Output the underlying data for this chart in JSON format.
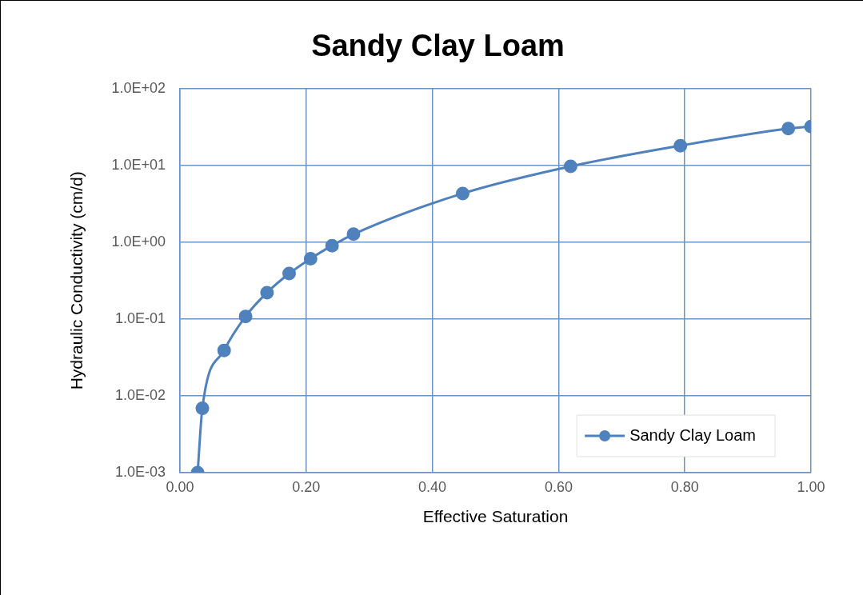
{
  "chart_data": {
    "type": "line",
    "title": "Sandy Clay Loam",
    "xlabel": "Effective Saturation",
    "ylabel": "Hydraulic Conductivity (cm/d)",
    "xlim": [
      0,
      1
    ],
    "xticks": [
      {
        "value": 0,
        "label": "0.00"
      },
      {
        "value": 0.2,
        "label": "0.20"
      },
      {
        "value": 0.4,
        "label": "0.40"
      },
      {
        "value": 0.6,
        "label": "0.60"
      },
      {
        "value": 0.8,
        "label": "0.80"
      },
      {
        "value": 1,
        "label": "1.00"
      }
    ],
    "ylim": [
      0.001,
      100
    ],
    "yticks": [
      {
        "value": 0.001,
        "label": "1.0E-03"
      },
      {
        "value": 0.01,
        "label": "1.0E-02"
      },
      {
        "value": 0.1,
        "label": "1.0E-01"
      },
      {
        "value": 1,
        "label": "1.0E+00"
      },
      {
        "value": 10,
        "label": "1.0E+01"
      },
      {
        "value": 100,
        "label": "1.0E+02"
      }
    ],
    "log": "y",
    "grid": true,
    "legend": "bottom right",
    "series": [
      {
        "name": "Sandy Clay Loam",
        "color": "#4f81bd",
        "marker": "circle",
        "x": [
          0.028,
          0.0355,
          0.07,
          0.104,
          0.138,
          0.173,
          0.207,
          0.241,
          0.275,
          0.448,
          0.619,
          0.793,
          0.964,
          1.0
        ],
        "values": [
          0.001,
          0.0069,
          0.039,
          0.108,
          0.22,
          0.39,
          0.61,
          0.9,
          1.27,
          4.3,
          9.7,
          18,
          30,
          32
        ]
      }
    ]
  }
}
